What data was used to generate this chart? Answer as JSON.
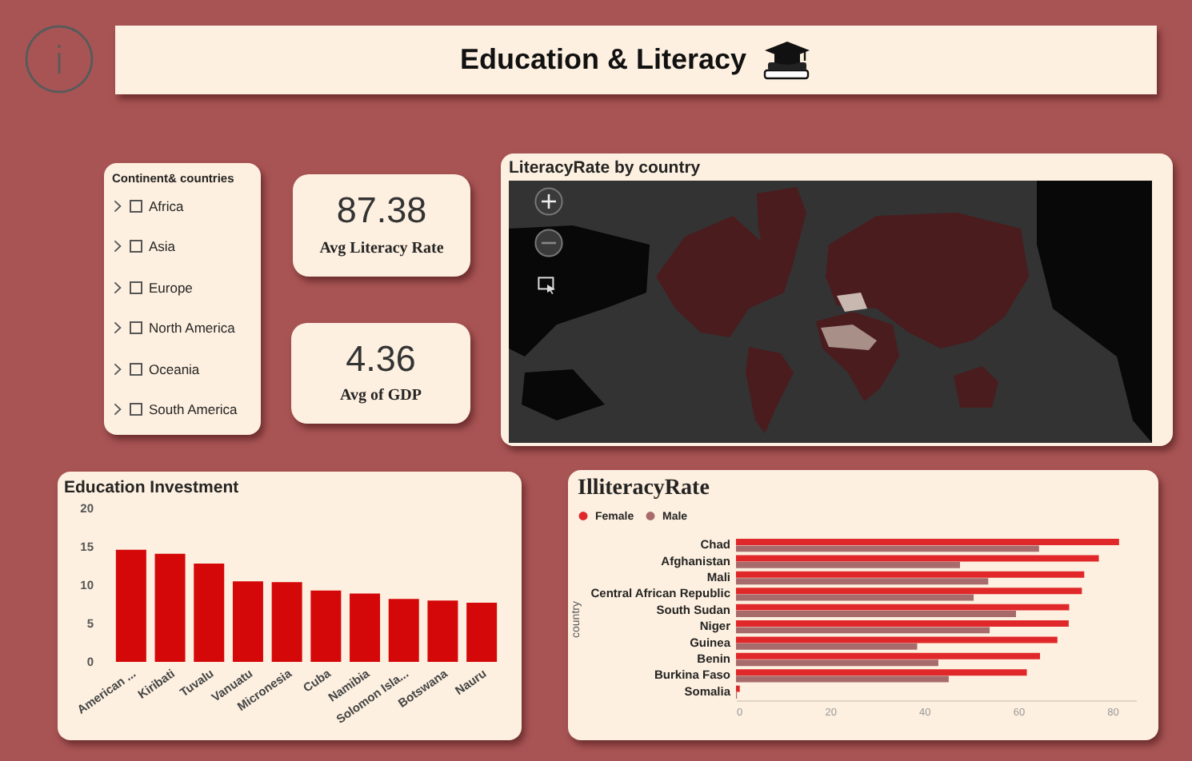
{
  "chart_data": [
    {
      "type": "other",
      "title": "Education & Literacy"
    },
    {
      "type": "other",
      "title": "Continent& countries",
      "annotations": [
        "Africa",
        "Asia",
        "Europe",
        "North America",
        "Oceania",
        "South America"
      ]
    },
    {
      "type": "other",
      "title": "Avg Literacy Rate",
      "values": [
        87.38
      ],
      "data_labels": true
    },
    {
      "type": "other",
      "title": "Avg of GDP",
      "values": [
        4.36
      ],
      "data_labels": true
    },
    {
      "type": "other",
      "title": "LiteracyRate by country"
    },
    {
      "type": "bar",
      "title": "Education Investment",
      "categories": [
        "American ...",
        "Kiribati",
        "Tuvalu",
        "Vanuatu",
        "Micronesia",
        "Cuba",
        "Namibia",
        "Solomon Isla...",
        "Botswana",
        "Nauru"
      ],
      "values": [
        14.6,
        14.1,
        12.8,
        10.5,
        10.4,
        9.3,
        8.9,
        8.2,
        8.0,
        7.7
      ],
      "color": "#d40808",
      "ylim": [
        0,
        20
      ],
      "yticks": [
        0,
        5,
        10,
        15,
        20
      ]
    },
    {
      "type": "bar",
      "orientation": "horizontal",
      "title": "IlliteracyRate",
      "ylabel": "country",
      "categories": [
        "Chad",
        "Afghanistan",
        "Mali",
        "Central African Republic",
        "South Sudan",
        "Niger",
        "Guinea",
        "Benin",
        "Burkina Faso",
        "Somalia"
      ],
      "series": [
        {
          "name": "Female",
          "color": "#e0282a",
          "values": [
            81.4,
            77.1,
            74.0,
            73.5,
            70.8,
            70.7,
            68.3,
            64.6,
            61.8,
            0.8
          ]
        },
        {
          "name": "Male",
          "color": "#a86b6b",
          "values": [
            64.4,
            47.6,
            53.6,
            50.5,
            59.5,
            53.9,
            38.5,
            43.0,
            45.2,
            0.2
          ]
        }
      ],
      "xlim": [
        0,
        85
      ],
      "xticks": [
        0,
        20,
        40,
        60,
        80
      ],
      "legend": "top left"
    }
  ]
}
